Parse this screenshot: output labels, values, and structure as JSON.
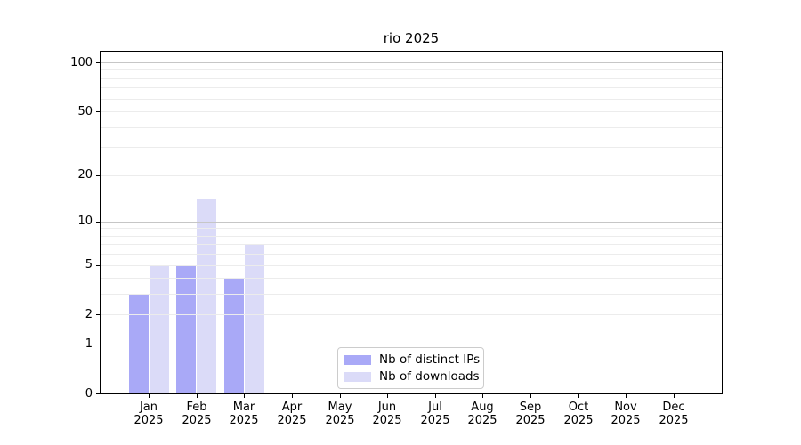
{
  "chart_data": {
    "type": "bar",
    "title": "rio 2025",
    "categories": [
      "Jan",
      "Feb",
      "Mar",
      "Apr",
      "May",
      "Jun",
      "Jul",
      "Aug",
      "Sep",
      "Oct",
      "Nov",
      "Dec"
    ],
    "category_year": "2025",
    "series": [
      {
        "name": "Nb of distinct IPs",
        "color": "#a9a9f7",
        "values": [
          3,
          5,
          4,
          0,
          0,
          0,
          0,
          0,
          0,
          0,
          0,
          0
        ]
      },
      {
        "name": "Nb of downloads",
        "color": "#dbdbf8",
        "values": [
          5,
          14,
          7,
          0,
          0,
          0,
          0,
          0,
          0,
          0,
          0,
          0
        ]
      }
    ],
    "y_axis": {
      "scale": "log1p",
      "ticks": [
        0,
        1,
        2,
        5,
        10,
        20,
        50,
        100
      ],
      "major_gridlines": [
        1,
        10,
        100
      ],
      "minor_gridlines": [
        2,
        3,
        4,
        5,
        6,
        7,
        8,
        9,
        20,
        30,
        40,
        50,
        60,
        70,
        80,
        90
      ],
      "range": [
        0,
        117
      ]
    },
    "grid": true,
    "legend_position": "lower-center-inside",
    "colors": {
      "spine": "#000000",
      "major_grid": "#c6c6c6",
      "minor_grid": "#ececec",
      "background": "#ffffff",
      "text": "#000000"
    }
  }
}
